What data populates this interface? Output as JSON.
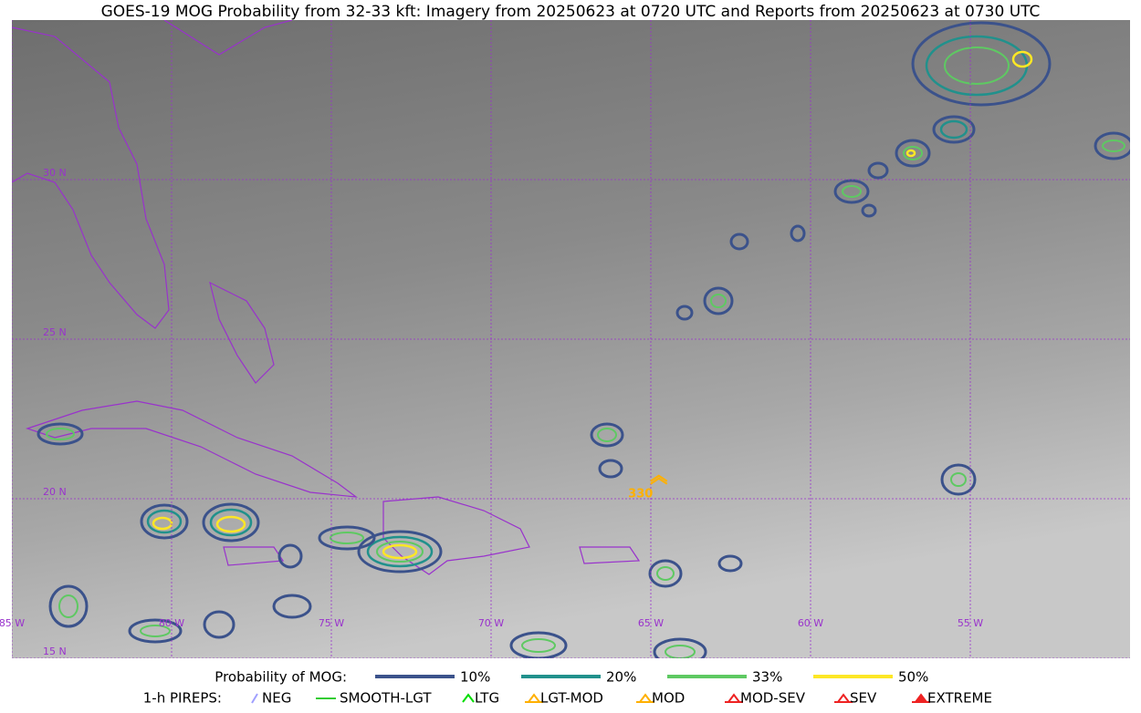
{
  "title": "GOES-19 MOG Probability from 32-33 kft: Imagery from 20250623 at 0720 UTC and Reports from 20250623 at 0730 UTC",
  "map": {
    "lonlim": [
      -85,
      -50
    ],
    "latlim": [
      15,
      35
    ],
    "lat_lines": [
      {
        "value": 30,
        "label": "30 N"
      },
      {
        "value": 25,
        "label": "25 N"
      },
      {
        "value": 20,
        "label": "20 N"
      },
      {
        "value": 15,
        "label": "15 N"
      }
    ],
    "lon_lines": [
      {
        "value": -85,
        "label": "85 W"
      },
      {
        "value": -80,
        "label": "80 W"
      },
      {
        "value": -75,
        "label": "75 W"
      },
      {
        "value": -70,
        "label": "70 W"
      },
      {
        "value": -65,
        "label": "65 W"
      },
      {
        "value": -60,
        "label": "60 W"
      },
      {
        "value": -55,
        "label": "55 W"
      }
    ],
    "grid_color": "#9932cc",
    "reports": [
      {
        "type": "MOD",
        "label": "330",
        "lon": -64.75,
        "lat": 20.55,
        "color": "#ffb000"
      }
    ]
  },
  "legend": {
    "probability_title": "Probability of MOG:",
    "levels": [
      {
        "name": "10%",
        "color": "#3b528b"
      },
      {
        "name": "20%",
        "color": "#21918c"
      },
      {
        "name": "33%",
        "color": "#5ec962"
      },
      {
        "name": "50%",
        "color": "#fde725"
      }
    ],
    "pireps_title": "1-h PIREPS:",
    "pireps": [
      {
        "name": "NEG",
        "color": "#a0a0ff"
      },
      {
        "name": "SMOOTH-LGT",
        "color": "#33cc33"
      },
      {
        "name": "LTG",
        "color": "#00dd00"
      },
      {
        "name": "LGT-MOD",
        "color": "#ffb000"
      },
      {
        "name": "MOD",
        "color": "#ffb000"
      },
      {
        "name": "MOD-SEV",
        "color": "#ee2222"
      },
      {
        "name": "SEV",
        "color": "#ee2222"
      },
      {
        "name": "EXTREME",
        "color": "#ee2222"
      }
    ]
  }
}
